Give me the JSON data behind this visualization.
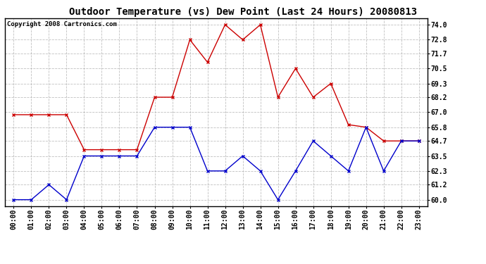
{
  "title": "Outdoor Temperature (vs) Dew Point (Last 24 Hours) 20080813",
  "copyright_text": "Copyright 2008 Cartronics.com",
  "x_labels": [
    "00:00",
    "01:00",
    "02:00",
    "03:00",
    "04:00",
    "05:00",
    "06:00",
    "07:00",
    "08:00",
    "09:00",
    "10:00",
    "11:00",
    "12:00",
    "13:00",
    "14:00",
    "15:00",
    "16:00",
    "17:00",
    "18:00",
    "19:00",
    "20:00",
    "21:00",
    "22:00",
    "23:00"
  ],
  "temp_data": [
    66.8,
    66.8,
    66.8,
    66.8,
    64.0,
    64.0,
    64.0,
    64.0,
    68.2,
    68.2,
    72.8,
    71.0,
    74.0,
    72.8,
    74.0,
    68.2,
    70.5,
    68.2,
    69.3,
    66.0,
    65.8,
    64.7,
    64.7,
    64.7
  ],
  "dew_data": [
    60.0,
    60.0,
    61.2,
    60.0,
    63.5,
    63.5,
    63.5,
    63.5,
    65.8,
    65.8,
    65.8,
    62.3,
    62.3,
    63.5,
    62.3,
    60.0,
    62.3,
    64.7,
    63.5,
    62.3,
    65.8,
    62.3,
    64.7,
    64.7
  ],
  "temp_color": "#cc0000",
  "dew_color": "#0000cc",
  "y_ticks": [
    60.0,
    61.2,
    62.3,
    63.5,
    64.7,
    65.8,
    67.0,
    68.2,
    69.3,
    70.5,
    71.7,
    72.8,
    74.0
  ],
  "y_min": 59.5,
  "y_max": 74.5,
  "background_color": "#ffffff",
  "grid_color": "#b0b0b0",
  "title_fontsize": 10,
  "copyright_fontsize": 6.5,
  "tick_fontsize": 7,
  "figwidth": 6.9,
  "figheight": 3.75,
  "dpi": 100
}
